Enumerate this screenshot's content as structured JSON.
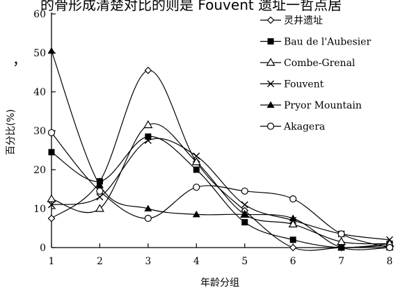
{
  "page": {
    "top_text": "的骨形成清楚对比的则是 Fouvent 遗址一哲点居",
    "stray_mark": "，"
  },
  "chart_data": {
    "type": "line",
    "title": "",
    "xlabel": "年龄分组",
    "ylabel": "百分比(%)",
    "x": [
      1,
      2,
      3,
      4,
      5,
      6,
      7,
      8
    ],
    "xticks": [
      "1",
      "2",
      "3",
      "4",
      "5",
      "6",
      "7",
      "8"
    ],
    "xlim": [
      1,
      8
    ],
    "ylim": [
      0,
      60
    ],
    "yticks": [
      "0",
      "10",
      "20",
      "30",
      "40",
      "50",
      "60"
    ],
    "grid": false,
    "legend_position": "top-right",
    "series": [
      {
        "name": "灵井遗址",
        "marker": "open-diamond",
        "values": [
          7.5,
          17,
          45.5,
          22,
          9.5,
          0,
          0,
          0.5
        ]
      },
      {
        "name": "Bau de l'Aubesier",
        "marker": "filled-square",
        "values": [
          24.5,
          17,
          28.5,
          20,
          6.5,
          2,
          0,
          1
        ]
      },
      {
        "name": "Combe-Grenal",
        "marker": "open-triangle",
        "values": [
          12.5,
          10,
          31.5,
          22,
          8.5,
          6,
          1.5,
          1
        ]
      },
      {
        "name": "Fouvent",
        "marker": "x-cross",
        "values": [
          11,
          13,
          27.5,
          23.5,
          11,
          7,
          3.5,
          2
        ]
      },
      {
        "name": "Pryor Mountain",
        "marker": "filled-triangle",
        "values": [
          50.5,
          16,
          10,
          8.5,
          8.5,
          7.5,
          0,
          0
        ]
      },
      {
        "name": "Akagera",
        "marker": "open-circle",
        "values": [
          29.5,
          14.5,
          7.5,
          15.5,
          14.5,
          12.5,
          3.5,
          0
        ]
      }
    ]
  }
}
